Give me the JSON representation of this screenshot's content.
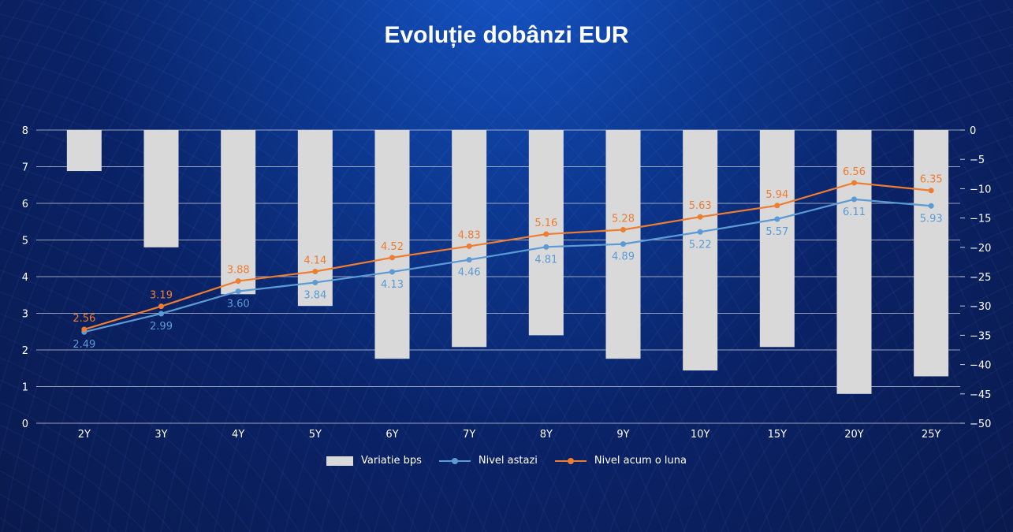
{
  "title": "Evoluție dobânzi EUR",
  "legend": {
    "bars": "Variatie bps",
    "today": "Nivel astazi",
    "month_ago": "Nivel acum o luna"
  },
  "colors": {
    "bars": "#d9d9d9",
    "today": "#5b9bd5",
    "month_ago": "#ed7d31",
    "axis_text": "#ffffff",
    "grid": "#c8cbd6"
  },
  "chart_data": {
    "type": "bar+line",
    "title": "Evoluție dobânzi EUR",
    "categories": [
      "2Y",
      "3Y",
      "4Y",
      "5Y",
      "6Y",
      "7Y",
      "8Y",
      "9Y",
      "10Y",
      "15Y",
      "20Y",
      "25Y"
    ],
    "series": [
      {
        "name": "Variatie bps",
        "type": "bar",
        "axis": "right",
        "values": [
          -7,
          -20,
          -28,
          -30,
          -39,
          -37,
          -35,
          -39,
          -41,
          -37,
          -45,
          -42
        ]
      },
      {
        "name": "Nivel astazi",
        "type": "line",
        "axis": "left",
        "values": [
          2.49,
          2.99,
          3.6,
          3.84,
          4.13,
          4.46,
          4.81,
          4.89,
          5.22,
          5.57,
          6.11,
          5.93
        ]
      },
      {
        "name": "Nivel acum o luna",
        "type": "line",
        "axis": "left",
        "values": [
          2.56,
          3.19,
          3.88,
          4.14,
          4.52,
          4.83,
          5.16,
          5.28,
          5.63,
          5.94,
          6.56,
          6.35
        ]
      }
    ],
    "ylim_left": [
      0,
      8
    ],
    "yticks_left": [
      0,
      1,
      2,
      3,
      4,
      5,
      6,
      7,
      8
    ],
    "ylim_right": [
      -50,
      0
    ],
    "yticks_right": [
      0,
      -5,
      -10,
      -15,
      -20,
      -25,
      -30,
      -35,
      -40,
      -45,
      -50
    ],
    "xlabel": "",
    "ylabel": "",
    "grid": true,
    "legend_position": "bottom"
  }
}
